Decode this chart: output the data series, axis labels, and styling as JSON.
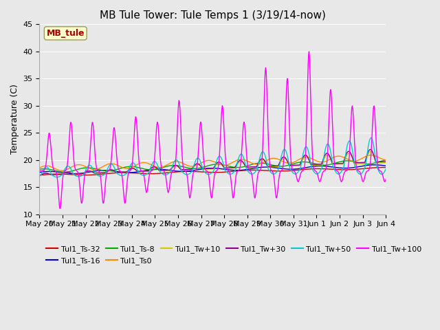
{
  "title": "MB Tule Tower: Tule Temps 1 (3/19/14-now)",
  "ylabel": "Temperature (C)",
  "ylim": [
    10,
    45
  ],
  "yticks": [
    10,
    15,
    20,
    25,
    30,
    35,
    40,
    45
  ],
  "x_labels": [
    "May 20",
    "May 21",
    "May 22",
    "May 23",
    "May 24",
    "May 25",
    "May 26",
    "May 27",
    "May 28",
    "May 29",
    "May 30",
    "May 31",
    "Jun 1",
    "Jun 2",
    "Jun 3",
    "Jun 4"
  ],
  "bg_color": "#e8e8e8",
  "series": [
    {
      "label": "Tul1_Ts-32",
      "color": "#cc0000"
    },
    {
      "label": "Tul1_Ts-16",
      "color": "#0000cc"
    },
    {
      "label": "Tul1_Ts-8",
      "color": "#00aa00"
    },
    {
      "label": "Tul1_Ts0",
      "color": "#ff8800"
    },
    {
      "label": "Tul1_Tw+10",
      "color": "#cccc00"
    },
    {
      "label": "Tul1_Tw+30",
      "color": "#880088"
    },
    {
      "label": "Tul1_Tw+50",
      "color": "#00cccc"
    },
    {
      "label": "Tul1_Tw+100",
      "color": "#ff00ff"
    }
  ],
  "legend_ncol": 6,
  "annotation_text": "MB_tule",
  "annotation_color": "#aa0000",
  "annotation_bg": "#ffffcc",
  "annotation_border": "#999966",
  "title_fontsize": 11,
  "axis_fontsize": 9,
  "tick_fontsize": 8,
  "lw": 1.0,
  "figsize": [
    6.4,
    4.8
  ],
  "dpi": 100
}
